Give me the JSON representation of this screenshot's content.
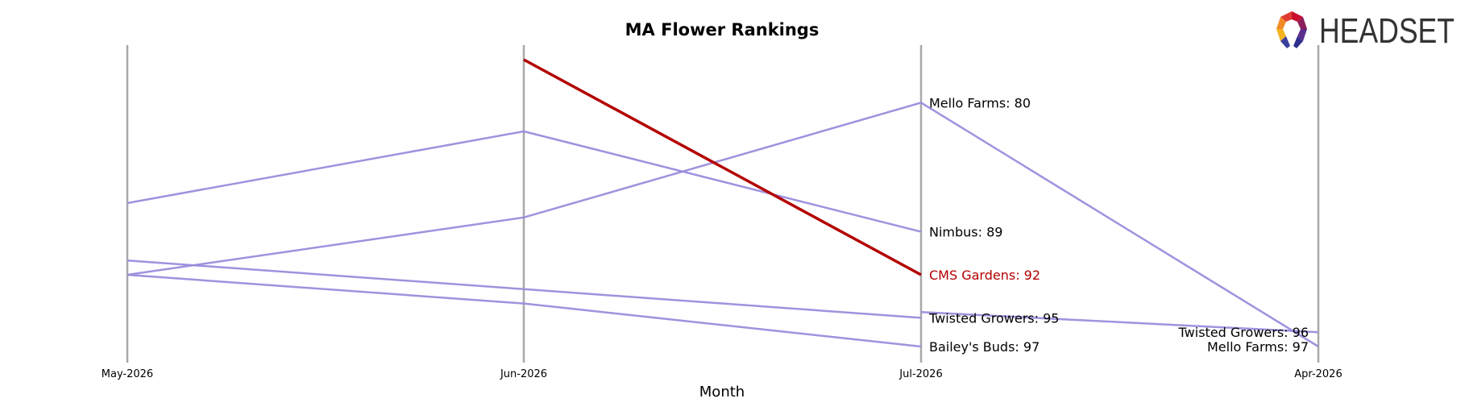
{
  "chart_data": {
    "type": "line",
    "title": "MA Flower Rankings",
    "xlabel": "Month",
    "ylabel": "",
    "categories": [
      "May-2026",
      "Jun-2026",
      "Jul-2026",
      "Apr-2026"
    ],
    "y_inverted": true,
    "ylim": [
      77,
      97
    ],
    "grid": false,
    "series": [
      {
        "name": "CMS Gardens",
        "highlight": true,
        "values": [
          null,
          77,
          92,
          null
        ]
      },
      {
        "name": "Nimbus",
        "values": [
          87,
          82,
          89,
          null
        ]
      },
      {
        "name": "Mello Farms",
        "values": [
          92,
          88,
          80,
          97
        ]
      },
      {
        "name": "Twisted Growers",
        "values": [
          91,
          93,
          95,
          null
        ]
      },
      {
        "name": "Bailey's Buds",
        "values": [
          92,
          94,
          97,
          null
        ]
      },
      {
        "name": "Twisted Growers",
        "values": [
          null,
          null,
          94.6,
          96
        ]
      }
    ],
    "end_labels": [
      {
        "text": "Mello Farms: 80",
        "category": "Jul-2026",
        "value": 80,
        "align": "left"
      },
      {
        "text": "Nimbus: 89",
        "category": "Jul-2026",
        "value": 89,
        "align": "left"
      },
      {
        "text": "CMS Gardens: 92",
        "category": "Jul-2026",
        "value": 92,
        "align": "left",
        "highlight": true
      },
      {
        "text": "Twisted Growers: 95",
        "category": "Jul-2026",
        "value": 95,
        "align": "left"
      },
      {
        "text": "Bailey's Buds: 97",
        "category": "Jul-2026",
        "value": 97,
        "align": "left"
      },
      {
        "text": "Twisted Growers: 96",
        "category": "Apr-2026",
        "value": 96,
        "align": "right"
      },
      {
        "text": "Mello Farms: 97",
        "category": "Apr-2026",
        "value": 97,
        "align": "right"
      }
    ]
  },
  "colors": {
    "highlight": "#b30000",
    "series": "#9b8cdc",
    "axis": "#a8a8a8",
    "text": "#000000"
  },
  "logo": {
    "text": "HEADSET",
    "icon": "headset-logo-icon"
  }
}
